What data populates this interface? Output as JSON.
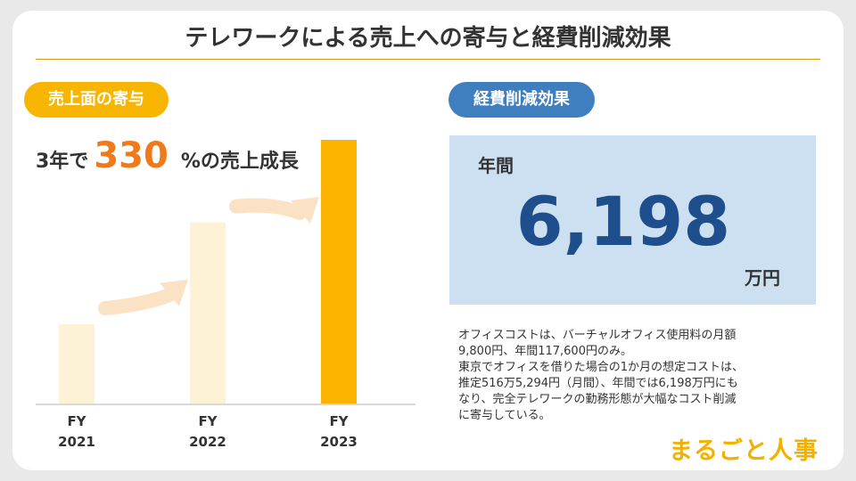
{
  "title": "テレワークによる売上への寄与と経費削減効果",
  "left_panel": {
    "badge": "売上面の寄与",
    "growth_prefix": "3年で",
    "growth_value": "330",
    "growth_suffix": "%の売上成長"
  },
  "chart_data": {
    "type": "bar",
    "categories": [
      "FY 2021",
      "FY 2022",
      "FY 2023"
    ],
    "category_lines": [
      [
        "FY",
        "2021"
      ],
      [
        "FY",
        "2022"
      ],
      [
        "FY",
        "2023"
      ]
    ],
    "values": [
      100,
      227,
      330
    ],
    "ylim": [
      0,
      330
    ],
    "colors": [
      "#fdf2d6",
      "#fdf2d6",
      "#fdb400"
    ],
    "axis_color": "#d9d9d9",
    "arrow_color": "#fce2c4",
    "grid": false
  },
  "right_panel": {
    "badge": "経費削減効果",
    "annual_label": "年間",
    "amount": "6,198",
    "unit": "万円",
    "note_lines": [
      "オフィスコストは、バーチャルオフィス使用料の月額",
      "9,800円、年間117,600円のみ。",
      "東京でオフィスを借りた場合の1か月の想定コストは、",
      "推定516万5,294円（月間）、年間では6,198万円にも",
      "なり、完全テレワークの勤務形態が大幅なコスト削減",
      "に寄与している。"
    ]
  },
  "logo": "まるごと人事"
}
